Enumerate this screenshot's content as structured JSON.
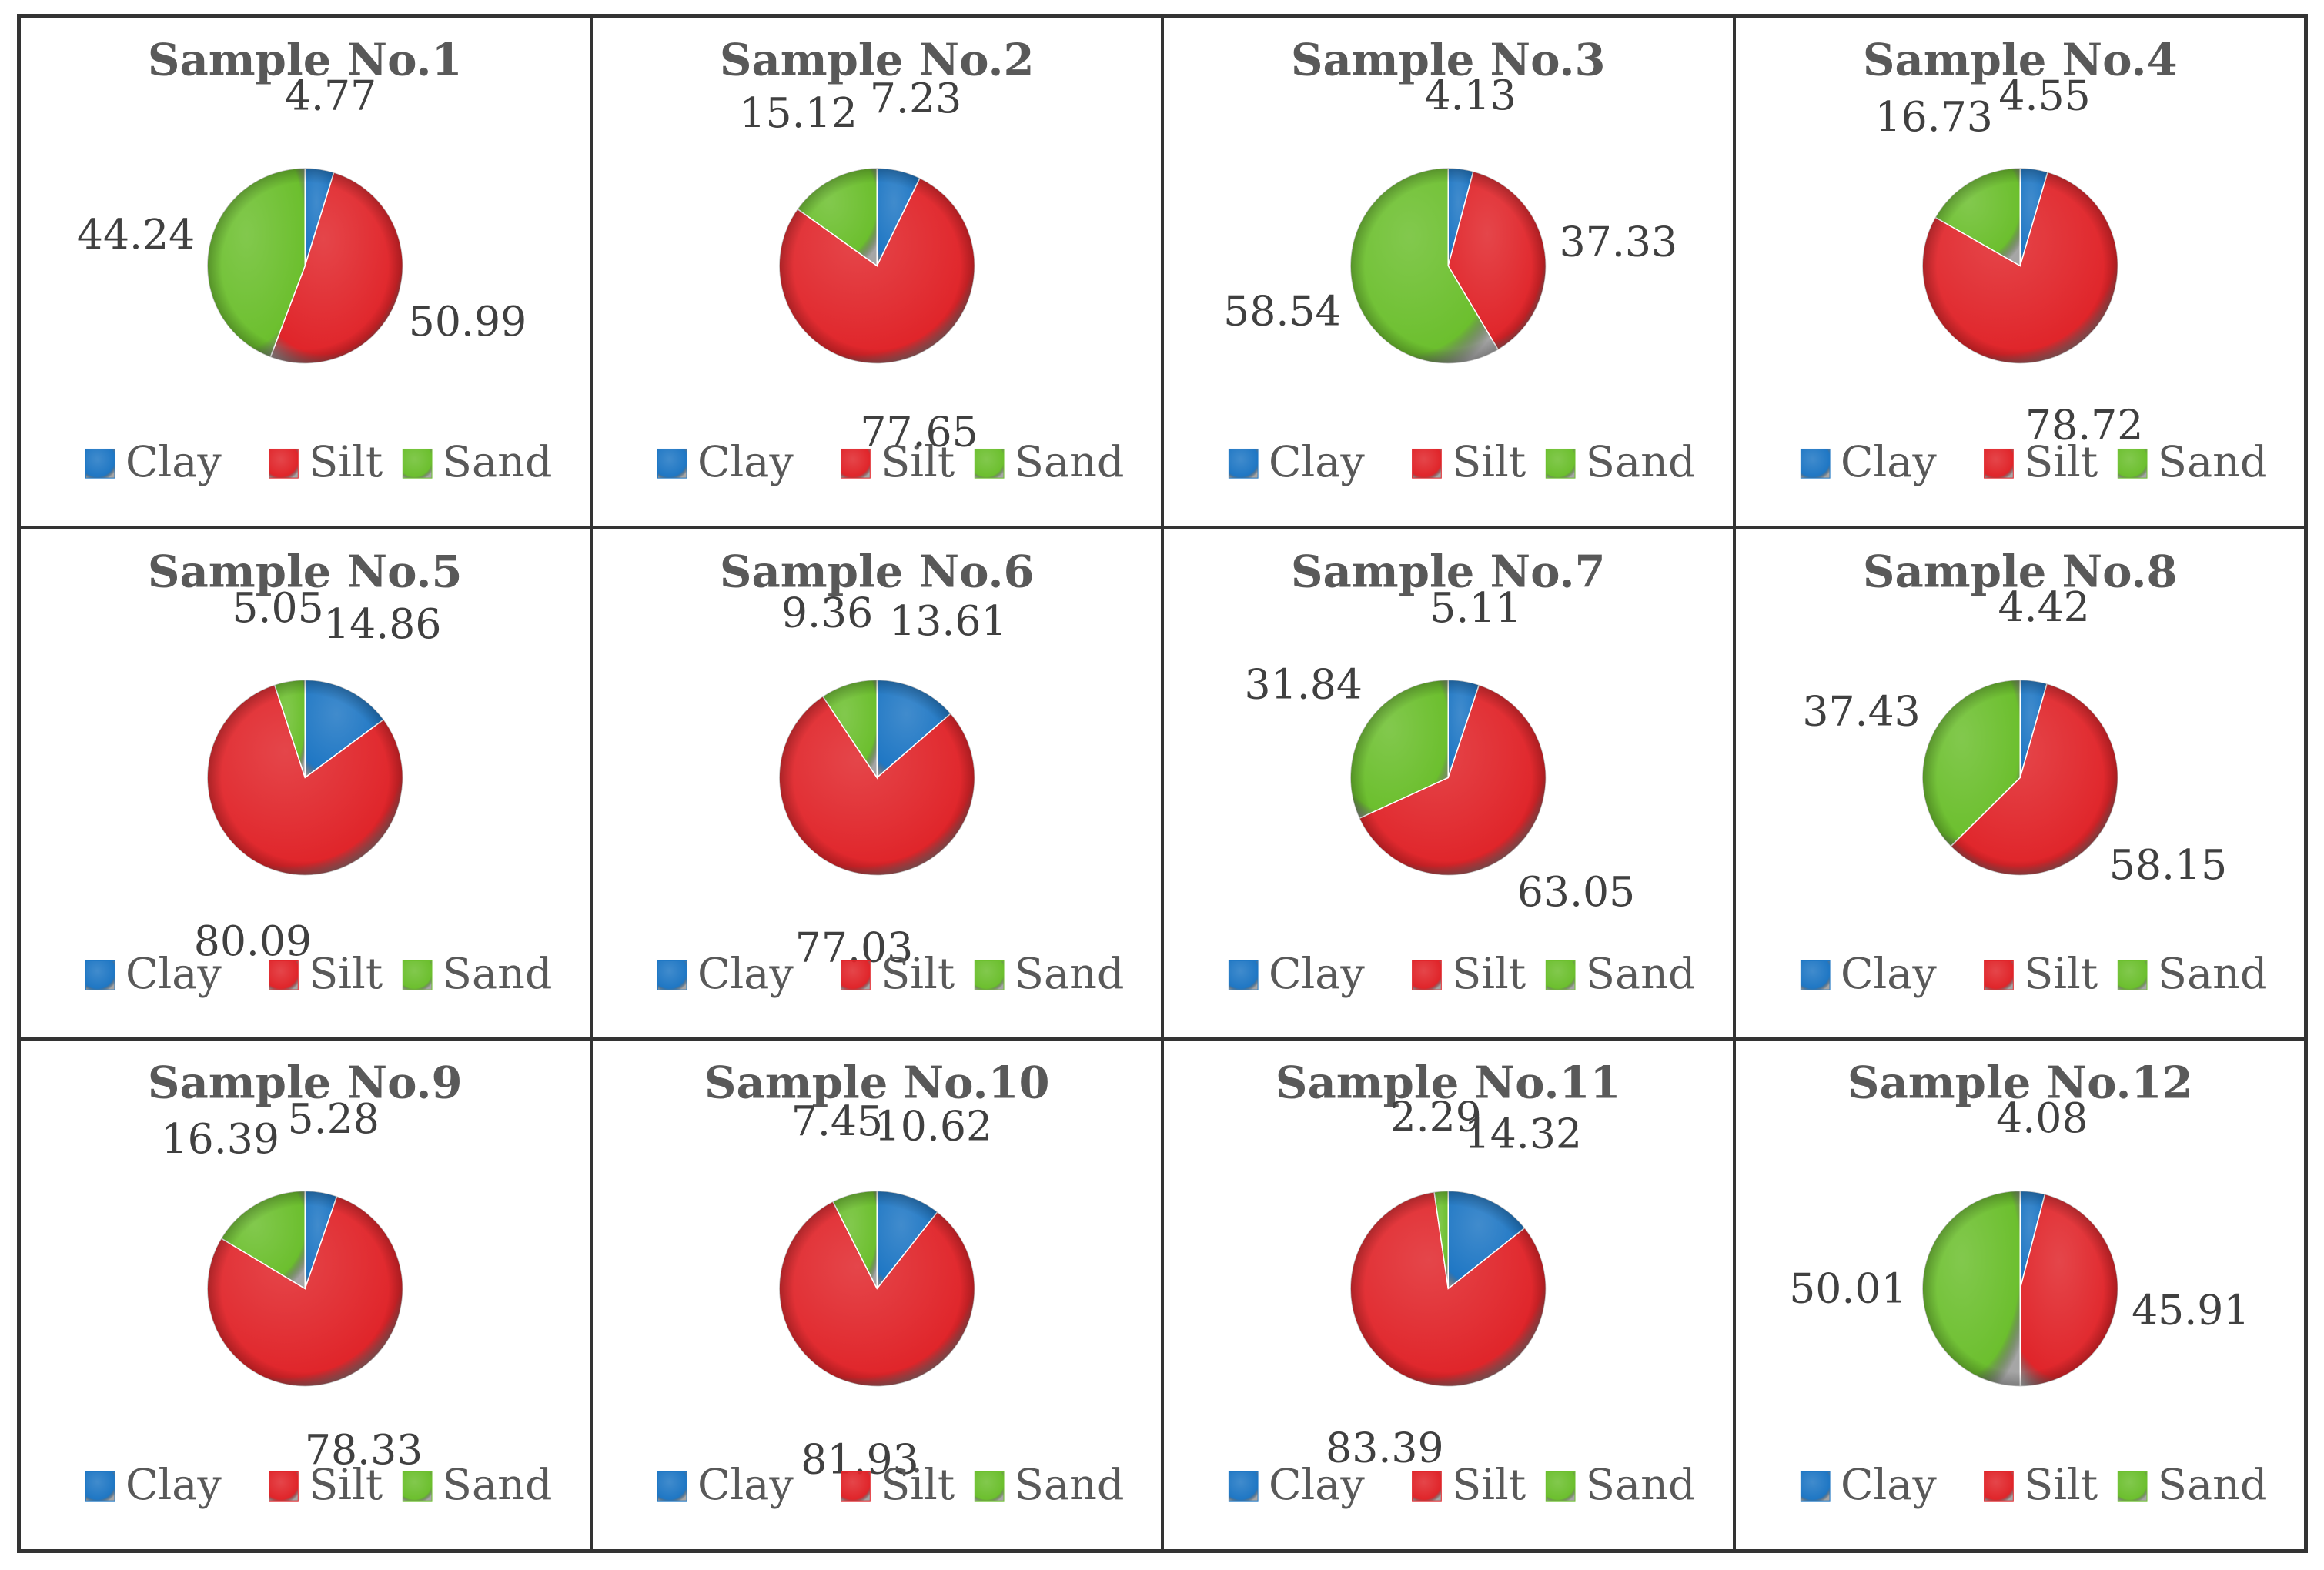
{
  "legend": [
    "Clay",
    "Silt",
    "Sand"
  ],
  "colors": {
    "Clay": "#1f77c4",
    "Silt": "#e0252a",
    "Sand": "#6cbf2e"
  },
  "chart_data": [
    {
      "type": "pie",
      "title": "Sample No.1",
      "labels": [
        "Clay",
        "Silt",
        "Sand"
      ],
      "values": [
        4.77,
        50.99,
        44.24
      ]
    },
    {
      "type": "pie",
      "title": "Sample No.2",
      "labels": [
        "Clay",
        "Silt",
        "Sand"
      ],
      "values": [
        7.23,
        77.65,
        15.12
      ]
    },
    {
      "type": "pie",
      "title": "Sample No.3",
      "labels": [
        "Clay",
        "Silt",
        "Sand"
      ],
      "values": [
        4.13,
        37.33,
        58.54
      ]
    },
    {
      "type": "pie",
      "title": "Sample No.4",
      "labels": [
        "Clay",
        "Silt",
        "Sand"
      ],
      "values": [
        4.55,
        78.72,
        16.73
      ]
    },
    {
      "type": "pie",
      "title": "Sample No.5",
      "labels": [
        "Clay",
        "Silt",
        "Sand"
      ],
      "values": [
        14.86,
        80.09,
        5.05
      ]
    },
    {
      "type": "pie",
      "title": "Sample No.6",
      "labels": [
        "Clay",
        "Silt",
        "Sand"
      ],
      "values": [
        13.61,
        77.03,
        9.36
      ]
    },
    {
      "type": "pie",
      "title": "Sample No.7",
      "labels": [
        "Clay",
        "Silt",
        "Sand"
      ],
      "values": [
        5.11,
        63.05,
        31.84
      ]
    },
    {
      "type": "pie",
      "title": "Sample No.8",
      "labels": [
        "Clay",
        "Silt",
        "Sand"
      ],
      "values": [
        4.42,
        58.15,
        37.43
      ]
    },
    {
      "type": "pie",
      "title": "Sample No.9",
      "labels": [
        "Clay",
        "Silt",
        "Sand"
      ],
      "values": [
        5.28,
        78.33,
        16.39
      ]
    },
    {
      "type": "pie",
      "title": "Sample No.10",
      "labels": [
        "Clay",
        "Silt",
        "Sand"
      ],
      "values": [
        10.62,
        81.93,
        7.45
      ]
    },
    {
      "type": "pie",
      "title": "Sample No.11",
      "labels": [
        "Clay",
        "Silt",
        "Sand"
      ],
      "values": [
        14.32,
        83.39,
        2.29
      ]
    },
    {
      "type": "pie",
      "title": "Sample No.12",
      "labels": [
        "Clay",
        "Silt",
        "Sand"
      ],
      "values": [
        4.08,
        45.91,
        50.01
      ]
    }
  ]
}
